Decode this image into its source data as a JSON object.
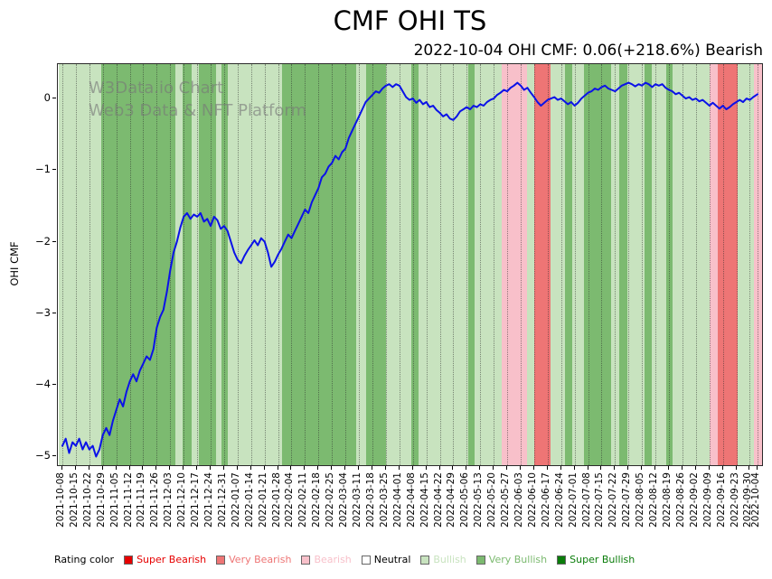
{
  "title": "CMF OHI TS",
  "subtitle": "2022-10-04 OHI CMF: 0.06(+218.6%) Bearish",
  "watermark": {
    "line1": "W3Data.io Chart",
    "line2": "Web3 Data & NFT Platform"
  },
  "legend": {
    "heading": "Rating color",
    "items": [
      {
        "label": "Super Bearish",
        "rating": "super_bearish"
      },
      {
        "label": "Very Bearish",
        "rating": "very_bearish"
      },
      {
        "label": "Bearish",
        "rating": "bearish"
      },
      {
        "label": "Neutral",
        "rating": "neutral"
      },
      {
        "label": "Bullish",
        "rating": "bullish"
      },
      {
        "label": "Very Bullish",
        "rating": "very_bullish"
      },
      {
        "label": "Super Bullish",
        "rating": "super_bullish"
      }
    ]
  },
  "chart_data": {
    "type": "line",
    "title": "CMF OHI TS",
    "subtitle": "2022-10-04 OHI CMF: 0.06(+218.6%) Bearish",
    "ylabel": "OHI CMF",
    "line_color": "#0b12e8",
    "grid": "vertical-dotted",
    "y_axis": {
      "ticks": [
        {
          "label": "0",
          "value": 0
        },
        {
          "label": "−1",
          "value": -1
        },
        {
          "label": "−2",
          "value": -2
        },
        {
          "label": "−3",
          "value": -3
        },
        {
          "label": "−4",
          "value": -4
        },
        {
          "label": "−5",
          "value": -5
        }
      ],
      "ymax": 0.48,
      "ymin": -5.12
    },
    "x_axis": {
      "max_weeks": 51.571,
      "ticks": [
        "2021-10-08",
        "2021-10-15",
        "2021-10-22",
        "2021-10-29",
        "2021-11-05",
        "2021-11-12",
        "2021-11-19",
        "2021-11-26",
        "2021-12-03",
        "2021-12-10",
        "2021-12-17",
        "2021-12-24",
        "2021-12-31",
        "2022-01-07",
        "2022-01-14",
        "2022-01-21",
        "2022-01-28",
        "2022-02-04",
        "2022-02-11",
        "2022-02-18",
        "2022-02-25",
        "2022-03-04",
        "2022-03-11",
        "2022-03-18",
        "2022-03-25",
        "2022-04-01",
        "2022-04-08",
        "2022-04-15",
        "2022-04-22",
        "2022-04-29",
        "2022-05-06",
        "2022-05-13",
        "2022-05-20",
        "2022-05-27",
        "2022-06-03",
        "2022-06-10",
        "2022-06-17",
        "2022-06-24",
        "2022-07-01",
        "2022-07-08",
        "2022-07-15",
        "2022-07-22",
        "2022-07-29",
        "2022-08-05",
        "2022-08-12",
        "2022-08-19",
        "2022-08-26",
        "2022-09-02",
        "2022-09-09",
        "2022-09-16",
        "2022-09-23",
        "2022-09-30",
        "2022-10-04"
      ]
    },
    "rating_colors": {
      "super_bearish": "#e60000",
      "very_bearish": "#ee7575",
      "bearish": "#f8c0ca",
      "neutral": "#ffffff",
      "bullish": "#c8e3bf",
      "very_bullish": "#7cba70",
      "super_bullish": "#0a7d0a"
    },
    "bands": [
      {
        "start": -0.3,
        "end": 2.9,
        "rating": "bullish"
      },
      {
        "start": 2.9,
        "end": 8.4,
        "rating": "very_bullish"
      },
      {
        "start": 8.4,
        "end": 8.9,
        "rating": "bullish"
      },
      {
        "start": 8.9,
        "end": 9.6,
        "rating": "very_bullish"
      },
      {
        "start": 9.6,
        "end": 10.1,
        "rating": "bullish"
      },
      {
        "start": 10.1,
        "end": 11.4,
        "rating": "very_bullish"
      },
      {
        "start": 11.4,
        "end": 11.8,
        "rating": "bullish"
      },
      {
        "start": 11.8,
        "end": 12.3,
        "rating": "very_bullish"
      },
      {
        "start": 12.3,
        "end": 16.3,
        "rating": "bullish"
      },
      {
        "start": 16.3,
        "end": 21.8,
        "rating": "very_bullish"
      },
      {
        "start": 21.8,
        "end": 22.5,
        "rating": "bullish"
      },
      {
        "start": 22.5,
        "end": 24.0,
        "rating": "very_bullish"
      },
      {
        "start": 24.0,
        "end": 25.9,
        "rating": "bullish"
      },
      {
        "start": 25.9,
        "end": 26.4,
        "rating": "very_bullish"
      },
      {
        "start": 26.4,
        "end": 30.1,
        "rating": "bullish"
      },
      {
        "start": 30.1,
        "end": 30.6,
        "rating": "very_bullish"
      },
      {
        "start": 30.6,
        "end": 32.6,
        "rating": "bullish"
      },
      {
        "start": 32.6,
        "end": 34.5,
        "rating": "bearish"
      },
      {
        "start": 34.5,
        "end": 35.0,
        "rating": "bullish"
      },
      {
        "start": 35.0,
        "end": 36.2,
        "rating": "very_bearish"
      },
      {
        "start": 36.2,
        "end": 37.3,
        "rating": "bullish"
      },
      {
        "start": 37.3,
        "end": 37.8,
        "rating": "very_bullish"
      },
      {
        "start": 37.8,
        "end": 38.7,
        "rating": "bullish"
      },
      {
        "start": 38.7,
        "end": 40.7,
        "rating": "very_bullish"
      },
      {
        "start": 40.7,
        "end": 41.3,
        "rating": "bullish"
      },
      {
        "start": 41.3,
        "end": 41.9,
        "rating": "very_bullish"
      },
      {
        "start": 41.9,
        "end": 43.2,
        "rating": "bullish"
      },
      {
        "start": 43.2,
        "end": 43.7,
        "rating": "very_bullish"
      },
      {
        "start": 43.7,
        "end": 44.8,
        "rating": "bullish"
      },
      {
        "start": 44.8,
        "end": 45.3,
        "rating": "very_bullish"
      },
      {
        "start": 45.3,
        "end": 48.0,
        "rating": "bullish"
      },
      {
        "start": 48.0,
        "end": 48.6,
        "rating": "bearish"
      },
      {
        "start": 48.6,
        "end": 50.1,
        "rating": "very_bearish"
      },
      {
        "start": 50.1,
        "end": 51.3,
        "rating": "bullish"
      },
      {
        "start": 51.3,
        "end": 51.9,
        "rating": "bearish"
      }
    ],
    "line": [
      [
        0,
        -4.85
      ],
      [
        0.25,
        -4.75
      ],
      [
        0.5,
        -4.95
      ],
      [
        0.75,
        -4.8
      ],
      [
        1,
        -4.85
      ],
      [
        1.25,
        -4.75
      ],
      [
        1.5,
        -4.9
      ],
      [
        1.75,
        -4.8
      ],
      [
        2,
        -4.9
      ],
      [
        2.25,
        -4.85
      ],
      [
        2.5,
        -5.0
      ],
      [
        2.75,
        -4.9
      ],
      [
        3,
        -4.7
      ],
      [
        3.25,
        -4.6
      ],
      [
        3.5,
        -4.7
      ],
      [
        3.75,
        -4.5
      ],
      [
        4,
        -4.35
      ],
      [
        4.25,
        -4.2
      ],
      [
        4.5,
        -4.3
      ],
      [
        4.75,
        -4.1
      ],
      [
        5,
        -3.95
      ],
      [
        5.25,
        -3.85
      ],
      [
        5.5,
        -3.95
      ],
      [
        5.75,
        -3.8
      ],
      [
        6,
        -3.7
      ],
      [
        6.25,
        -3.6
      ],
      [
        6.5,
        -3.65
      ],
      [
        6.75,
        -3.5
      ],
      [
        7,
        -3.2
      ],
      [
        7.25,
        -3.05
      ],
      [
        7.5,
        -2.95
      ],
      [
        7.75,
        -2.7
      ],
      [
        8,
        -2.4
      ],
      [
        8.25,
        -2.15
      ],
      [
        8.5,
        -2.0
      ],
      [
        8.75,
        -1.8
      ],
      [
        9,
        -1.65
      ],
      [
        9.25,
        -1.6
      ],
      [
        9.5,
        -1.68
      ],
      [
        9.75,
        -1.62
      ],
      [
        10,
        -1.65
      ],
      [
        10.25,
        -1.6
      ],
      [
        10.5,
        -1.72
      ],
      [
        10.75,
        -1.68
      ],
      [
        11,
        -1.78
      ],
      [
        11.25,
        -1.65
      ],
      [
        11.5,
        -1.7
      ],
      [
        11.75,
        -1.82
      ],
      [
        12,
        -1.78
      ],
      [
        12.25,
        -1.85
      ],
      [
        12.5,
        -2.0
      ],
      [
        12.75,
        -2.15
      ],
      [
        13,
        -2.25
      ],
      [
        13.25,
        -2.3
      ],
      [
        13.5,
        -2.2
      ],
      [
        13.75,
        -2.12
      ],
      [
        14,
        -2.05
      ],
      [
        14.25,
        -1.98
      ],
      [
        14.5,
        -2.05
      ],
      [
        14.75,
        -1.95
      ],
      [
        15,
        -2.0
      ],
      [
        15.25,
        -2.15
      ],
      [
        15.5,
        -2.35
      ],
      [
        15.75,
        -2.28
      ],
      [
        16,
        -2.18
      ],
      [
        16.25,
        -2.1
      ],
      [
        16.5,
        -2.0
      ],
      [
        16.75,
        -1.9
      ],
      [
        17,
        -1.95
      ],
      [
        17.25,
        -1.85
      ],
      [
        17.5,
        -1.75
      ],
      [
        17.75,
        -1.65
      ],
      [
        18,
        -1.55
      ],
      [
        18.25,
        -1.6
      ],
      [
        18.5,
        -1.45
      ],
      [
        18.75,
        -1.35
      ],
      [
        19,
        -1.25
      ],
      [
        19.25,
        -1.1
      ],
      [
        19.5,
        -1.05
      ],
      [
        19.75,
        -0.95
      ],
      [
        20,
        -0.9
      ],
      [
        20.25,
        -0.8
      ],
      [
        20.5,
        -0.85
      ],
      [
        20.75,
        -0.75
      ],
      [
        21,
        -0.7
      ],
      [
        21.25,
        -0.55
      ],
      [
        21.5,
        -0.45
      ],
      [
        21.75,
        -0.35
      ],
      [
        22,
        -0.25
      ],
      [
        22.25,
        -0.15
      ],
      [
        22.5,
        -0.05
      ],
      [
        22.75,
        0.0
      ],
      [
        23,
        0.05
      ],
      [
        23.25,
        0.1
      ],
      [
        23.5,
        0.08
      ],
      [
        23.75,
        0.14
      ],
      [
        24,
        0.18
      ],
      [
        24.25,
        0.2
      ],
      [
        24.5,
        0.16
      ],
      [
        24.75,
        0.2
      ],
      [
        25,
        0.18
      ],
      [
        25.25,
        0.1
      ],
      [
        25.5,
        0.02
      ],
      [
        25.75,
        -0.02
      ],
      [
        26,
        0.0
      ],
      [
        26.25,
        -0.06
      ],
      [
        26.5,
        -0.02
      ],
      [
        26.75,
        -0.08
      ],
      [
        27,
        -0.05
      ],
      [
        27.25,
        -0.12
      ],
      [
        27.5,
        -0.1
      ],
      [
        27.75,
        -0.16
      ],
      [
        28,
        -0.2
      ],
      [
        28.25,
        -0.25
      ],
      [
        28.5,
        -0.22
      ],
      [
        28.75,
        -0.28
      ],
      [
        29,
        -0.3
      ],
      [
        29.25,
        -0.25
      ],
      [
        29.5,
        -0.18
      ],
      [
        29.75,
        -0.15
      ],
      [
        30,
        -0.12
      ],
      [
        30.25,
        -0.15
      ],
      [
        30.5,
        -0.1
      ],
      [
        30.75,
        -0.12
      ],
      [
        31,
        -0.08
      ],
      [
        31.25,
        -0.1
      ],
      [
        31.5,
        -0.05
      ],
      [
        31.75,
        -0.02
      ],
      [
        32,
        0.0
      ],
      [
        32.25,
        0.05
      ],
      [
        32.5,
        0.08
      ],
      [
        32.75,
        0.12
      ],
      [
        33,
        0.1
      ],
      [
        33.25,
        0.15
      ],
      [
        33.5,
        0.18
      ],
      [
        33.75,
        0.22
      ],
      [
        34,
        0.18
      ],
      [
        34.25,
        0.12
      ],
      [
        34.5,
        0.15
      ],
      [
        34.75,
        0.08
      ],
      [
        35,
        0.02
      ],
      [
        35.25,
        -0.05
      ],
      [
        35.5,
        -0.1
      ],
      [
        35.75,
        -0.06
      ],
      [
        36,
        -0.02
      ],
      [
        36.25,
        0.0
      ],
      [
        36.5,
        0.02
      ],
      [
        36.75,
        -0.02
      ],
      [
        37,
        0.0
      ],
      [
        37.25,
        -0.04
      ],
      [
        37.5,
        -0.08
      ],
      [
        37.75,
        -0.05
      ],
      [
        38,
        -0.1
      ],
      [
        38.25,
        -0.06
      ],
      [
        38.5,
        0.0
      ],
      [
        38.75,
        0.04
      ],
      [
        39,
        0.08
      ],
      [
        39.25,
        0.1
      ],
      [
        39.5,
        0.14
      ],
      [
        39.75,
        0.12
      ],
      [
        40,
        0.16
      ],
      [
        40.25,
        0.18
      ],
      [
        40.5,
        0.14
      ],
      [
        40.75,
        0.12
      ],
      [
        41,
        0.1
      ],
      [
        41.25,
        0.14
      ],
      [
        41.5,
        0.18
      ],
      [
        41.75,
        0.2
      ],
      [
        42,
        0.22
      ],
      [
        42.25,
        0.2
      ],
      [
        42.5,
        0.17
      ],
      [
        42.75,
        0.2
      ],
      [
        43,
        0.18
      ],
      [
        43.25,
        0.22
      ],
      [
        43.5,
        0.2
      ],
      [
        43.75,
        0.16
      ],
      [
        44,
        0.2
      ],
      [
        44.25,
        0.18
      ],
      [
        44.5,
        0.2
      ],
      [
        44.75,
        0.15
      ],
      [
        45,
        0.12
      ],
      [
        45.25,
        0.1
      ],
      [
        45.5,
        0.06
      ],
      [
        45.75,
        0.08
      ],
      [
        46,
        0.04
      ],
      [
        46.25,
        0.0
      ],
      [
        46.5,
        0.02
      ],
      [
        46.75,
        -0.02
      ],
      [
        47,
        0.0
      ],
      [
        47.25,
        -0.04
      ],
      [
        47.5,
        -0.02
      ],
      [
        47.75,
        -0.06
      ],
      [
        48,
        -0.1
      ],
      [
        48.25,
        -0.06
      ],
      [
        48.5,
        -0.1
      ],
      [
        48.75,
        -0.14
      ],
      [
        49,
        -0.1
      ],
      [
        49.25,
        -0.15
      ],
      [
        49.5,
        -0.12
      ],
      [
        49.75,
        -0.08
      ],
      [
        50,
        -0.05
      ],
      [
        50.25,
        -0.02
      ],
      [
        50.5,
        -0.05
      ],
      [
        50.75,
        0.0
      ],
      [
        51,
        -0.02
      ],
      [
        51.25,
        0.02
      ],
      [
        51.571,
        0.06
      ]
    ]
  }
}
